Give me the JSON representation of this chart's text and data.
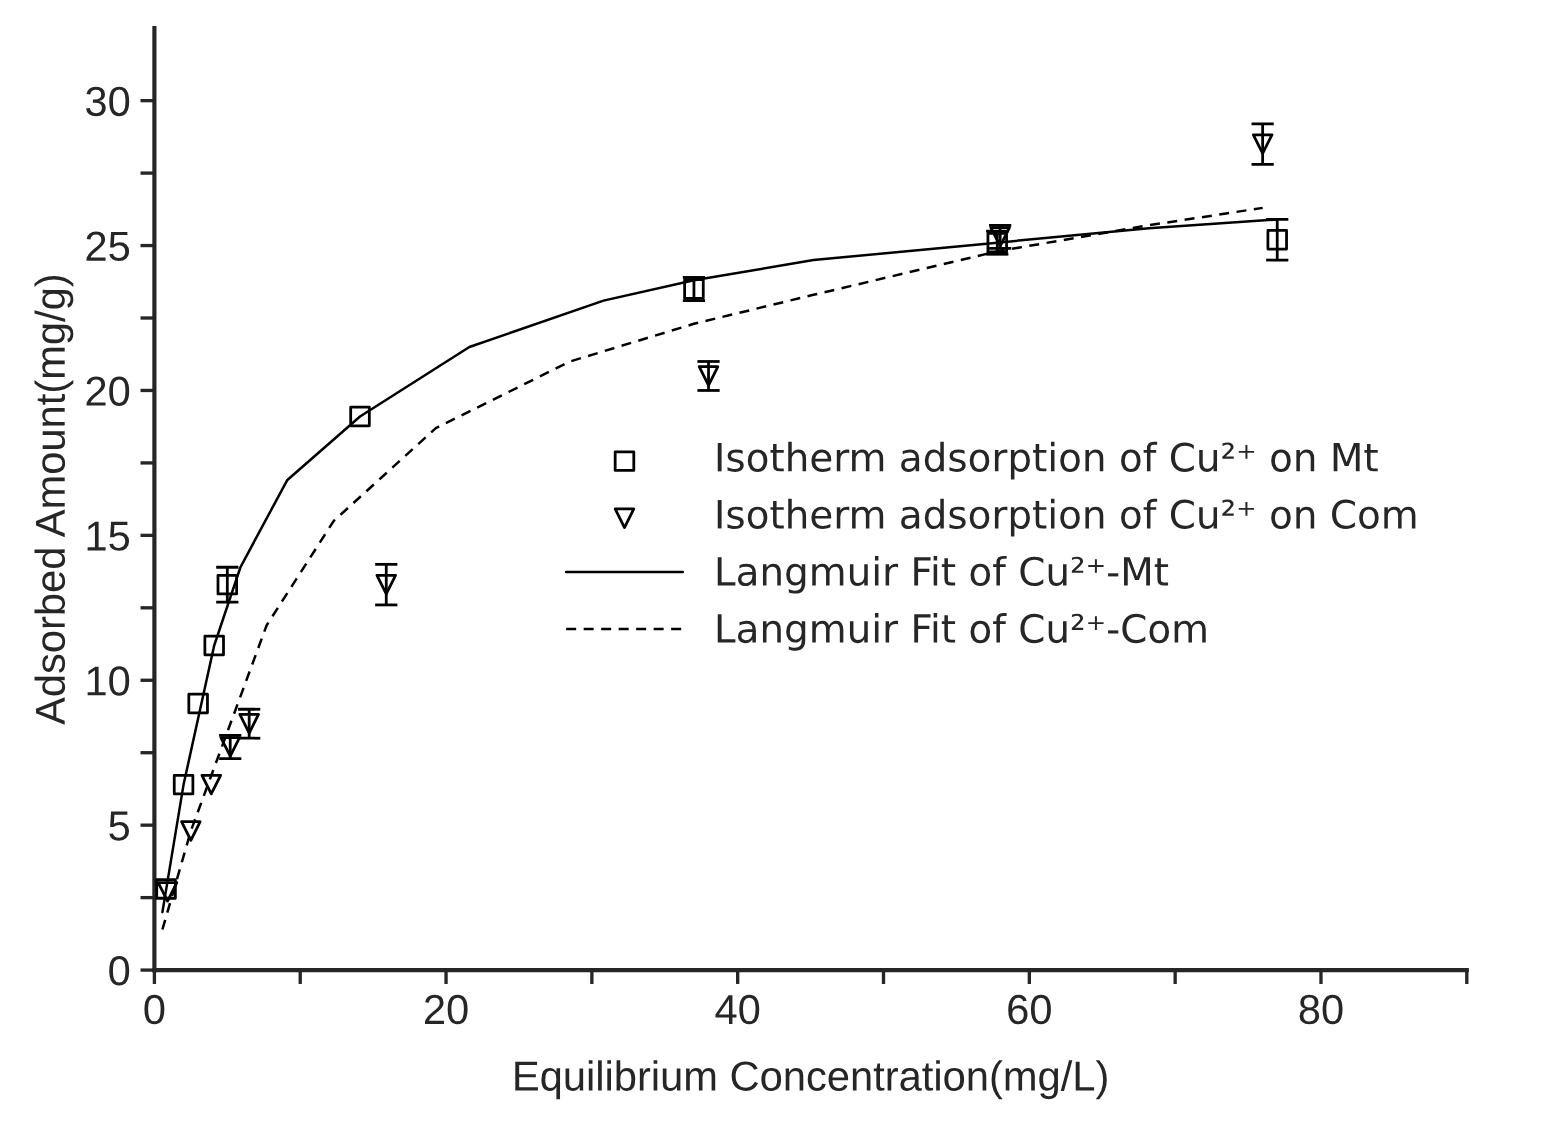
{
  "chart_data": {
    "type": "scatter",
    "xlabel": "Equilibrium Concentration(mg/L)",
    "ylabel": "Adsorbed Amount(mg/g)",
    "xlim": [
      0,
      90
    ],
    "ylim": [
      0,
      32.5
    ],
    "xticks": [
      0,
      {
        "value": 10,
        "label": null
      },
      20,
      {
        "value": 30,
        "label": null
      },
      40,
      {
        "value": 50,
        "label": null
      },
      60,
      {
        "value": 70,
        "label": null
      },
      80,
      {
        "value": 90,
        "label": null
      }
    ],
    "yticks": [
      0,
      {
        "value": 2.5,
        "label": null
      },
      5,
      {
        "value": 7.5,
        "label": null
      },
      10,
      {
        "value": 12.5,
        "label": null
      },
      15,
      {
        "value": 17.5,
        "label": null
      },
      20,
      {
        "value": 22.5,
        "label": null
      },
      25,
      {
        "value": 27.5,
        "label": null
      },
      30
    ],
    "grid": false,
    "legend": "right",
    "series": [
      {
        "name": "Isotherm adsorption of Cu²⁺ on Mt",
        "marker": "square",
        "color": "#000000",
        "x": [
          0.8,
          2.0,
          3.0,
          4.1,
          5.0,
          14.1,
          37.0,
          57.8,
          77.0
        ],
        "values": [
          2.8,
          6.4,
          9.2,
          11.2,
          13.3,
          19.1,
          23.5,
          25.1,
          25.2
        ],
        "errors": [
          null,
          null,
          null,
          null,
          0.6,
          null,
          0.4,
          0.4,
          0.7
        ]
      },
      {
        "name": "Isotherm adsorption of Cu²⁺ on Com",
        "marker": "triangle",
        "color": "#000000",
        "x": [
          0.9,
          2.5,
          3.9,
          5.2,
          6.5,
          15.9,
          38.0,
          58.0,
          76.0
        ],
        "values": [
          2.7,
          4.8,
          6.4,
          7.7,
          8.5,
          13.3,
          20.5,
          25.3,
          28.5
        ],
        "errors": [
          null,
          null,
          null,
          0.4,
          0.5,
          0.7,
          0.5,
          0.4,
          0.7
        ]
      },
      {
        "name": "Langmuir Fit of Cu²⁺-Mt",
        "type": "line",
        "line_style": "solid",
        "color": "#000000",
        "x": [
          0.55,
          2.0,
          4.1,
          5.9,
          9.1,
          14.1,
          21.6,
          30.8,
          37.0,
          45.2,
          57.8,
          68.2,
          77.0
        ],
        "values": [
          2.0,
          6.4,
          11.2,
          13.9,
          16.9,
          19.1,
          21.5,
          23.1,
          23.8,
          24.5,
          25.1,
          25.6,
          25.9
        ]
      },
      {
        "name": "Langmuir Fit of Cu²⁺-Com",
        "type": "line",
        "line_style": "dashed",
        "color": "#000000",
        "x": [
          0.55,
          2.5,
          7.7,
          12.3,
          19.3,
          28.5,
          37.0,
          45.2,
          57.8,
          68.2,
          76.0
        ],
        "values": [
          1.4,
          4.8,
          11.9,
          15.5,
          18.7,
          21.0,
          22.3,
          23.3,
          24.8,
          25.7,
          26.3
        ]
      }
    ]
  }
}
